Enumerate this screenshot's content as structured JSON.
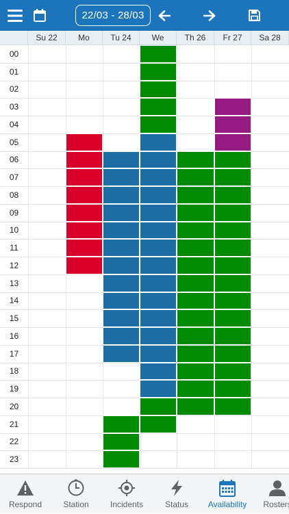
{
  "header": {
    "date_range": "22/03 - 28/03"
  },
  "days": [
    "Su 22",
    "Mo",
    "Tu 24",
    "We",
    "Th 26",
    "Fr 27",
    "Sa 28"
  ],
  "hours": [
    "00",
    "01",
    "02",
    "03",
    "04",
    "05",
    "06",
    "07",
    "08",
    "09",
    "10",
    "11",
    "12",
    "13",
    "14",
    "15",
    "16",
    "17",
    "18",
    "19",
    "20",
    "21",
    "22",
    "23"
  ],
  "status_colors": {
    "red": "#d8002b",
    "blue": "#1c6ea4",
    "green": "#008a00",
    "purple": "#951a81"
  },
  "availability": [
    {
      "day": 1,
      "from_hour": 5,
      "to_hour": 12,
      "status": "red"
    },
    {
      "day": 2,
      "from_hour": 6,
      "to_hour": 17,
      "status": "blue"
    },
    {
      "day": 2,
      "from_hour": 21,
      "to_hour": 23,
      "status": "green"
    },
    {
      "day": 3,
      "from_hour": 0,
      "to_hour": 4,
      "status": "green"
    },
    {
      "day": 3,
      "from_hour": 5,
      "to_hour": 19,
      "status": "blue"
    },
    {
      "day": 3,
      "from_hour": 20,
      "to_hour": 21,
      "status": "green"
    },
    {
      "day": 4,
      "from_hour": 6,
      "to_hour": 20,
      "status": "green"
    },
    {
      "day": 5,
      "from_hour": 3,
      "to_hour": 5,
      "status": "purple"
    },
    {
      "day": 5,
      "from_hour": 6,
      "to_hour": 20,
      "status": "green"
    }
  ],
  "nav": {
    "active": "availability",
    "items": [
      {
        "id": "respond",
        "label": "Respond",
        "icon": "warning-icon"
      },
      {
        "id": "station",
        "label": "Station",
        "icon": "clock-icon"
      },
      {
        "id": "incidents",
        "label": "Incidents",
        "icon": "target-icon"
      },
      {
        "id": "status",
        "label": "Status",
        "icon": "lightning-icon"
      },
      {
        "id": "availability",
        "label": "Availability",
        "icon": "calendar-grid-icon"
      },
      {
        "id": "rosters",
        "label": "Rosters",
        "icon": "person-icon"
      }
    ]
  }
}
